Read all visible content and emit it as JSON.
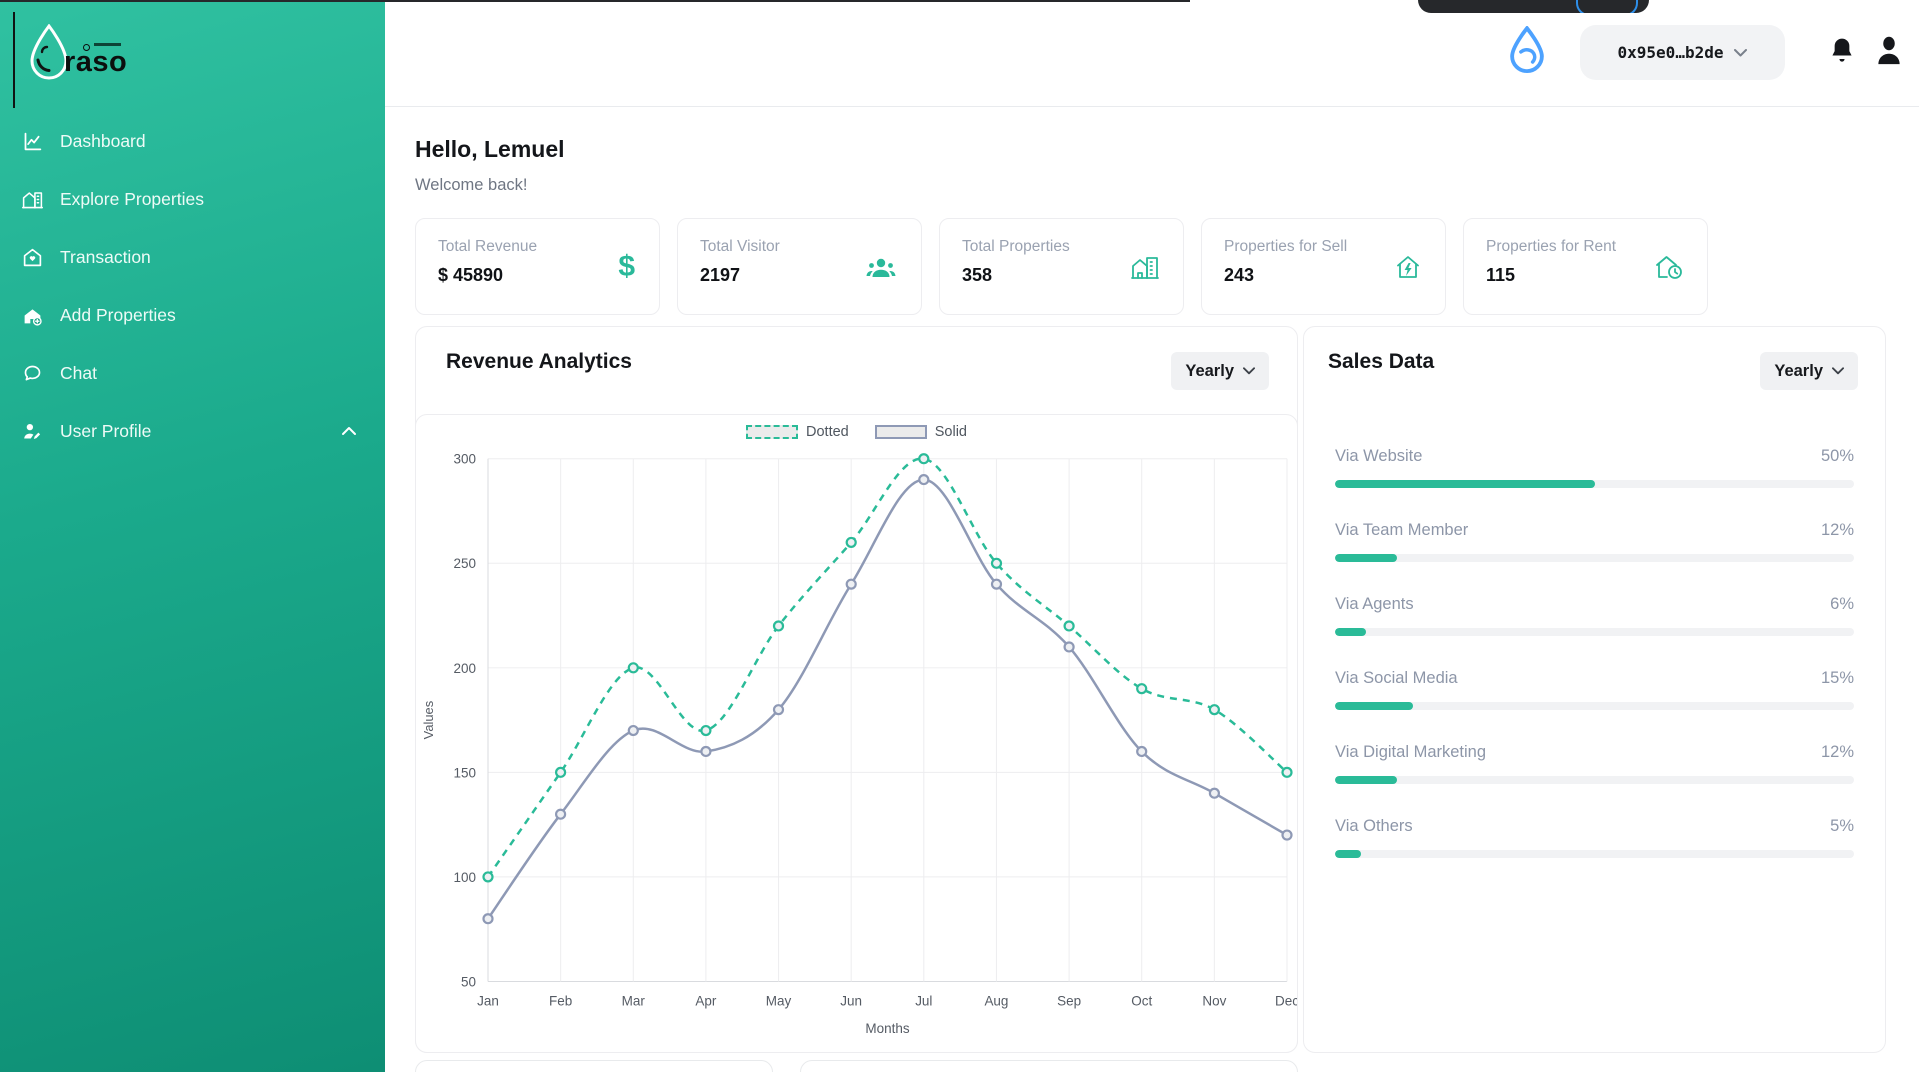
{
  "sidebar": {
    "logo_text": "raso",
    "items": [
      {
        "label": "Dashboard"
      },
      {
        "label": "Explore Properties"
      },
      {
        "label": "Transaction"
      },
      {
        "label": "Add Properties"
      },
      {
        "label": "Chat"
      },
      {
        "label": "User Profile"
      }
    ]
  },
  "header": {
    "wallet_address": "0x95e0…b2de"
  },
  "greeting": {
    "title": "Hello, Lemuel",
    "subtitle": "Welcome back!"
  },
  "stats": [
    {
      "label": "Total Revenue",
      "value": "$ 45890",
      "icon": "dollar-icon"
    },
    {
      "label": "Total Visitor",
      "value": "2197",
      "icon": "people-icon"
    },
    {
      "label": "Total Properties",
      "value": "358",
      "icon": "buildings-icon"
    },
    {
      "label": "Properties for Sell",
      "value": "243",
      "icon": "house-bolt-icon"
    },
    {
      "label": "Properties for Rent",
      "value": "115",
      "icon": "house-clock-icon"
    }
  ],
  "revenue": {
    "title": "Revenue Analytics",
    "period": "Yearly"
  },
  "sales": {
    "title": "Sales Data",
    "period": "Yearly",
    "channels": [
      {
        "label": "Via Website",
        "pct": 50,
        "pct_label": "50%"
      },
      {
        "label": "Via Team Member",
        "pct": 12,
        "pct_label": "12%"
      },
      {
        "label": "Via Agents",
        "pct": 6,
        "pct_label": "6%"
      },
      {
        "label": "Via Social Media",
        "pct": 15,
        "pct_label": "15%"
      },
      {
        "label": "Via Digital Marketing",
        "pct": 12,
        "pct_label": "12%"
      },
      {
        "label": "Via Others",
        "pct": 5,
        "pct_label": "5%"
      }
    ]
  },
  "chart_data": {
    "type": "line",
    "x": [
      "Jan",
      "Feb",
      "Mar",
      "Apr",
      "May",
      "Jun",
      "Jul",
      "Aug",
      "Sep",
      "Oct",
      "Nov",
      "Dec"
    ],
    "series": [
      {
        "name": "Dotted",
        "style": "dashed",
        "color": "#2abb98",
        "values": [
          100,
          150,
          200,
          170,
          220,
          260,
          300,
          250,
          220,
          190,
          180,
          150
        ]
      },
      {
        "name": "Solid",
        "style": "solid",
        "color": "#8e99b5",
        "values": [
          80,
          130,
          170,
          160,
          180,
          240,
          290,
          240,
          210,
          160,
          140,
          120
        ]
      }
    ],
    "xlabel": "Months",
    "ylabel": "Values",
    "ylim": [
      50,
      300
    ],
    "yticks": [
      50,
      100,
      150,
      200,
      250,
      300
    ],
    "grid": true,
    "legend_position": "top"
  },
  "colors": {
    "accent": "#2abb98",
    "solid_line": "#8e99b5",
    "sidebar_top": "#30c1a1",
    "sidebar_bottom": "#0e8e74",
    "sui_blue": "#4da2ff"
  }
}
